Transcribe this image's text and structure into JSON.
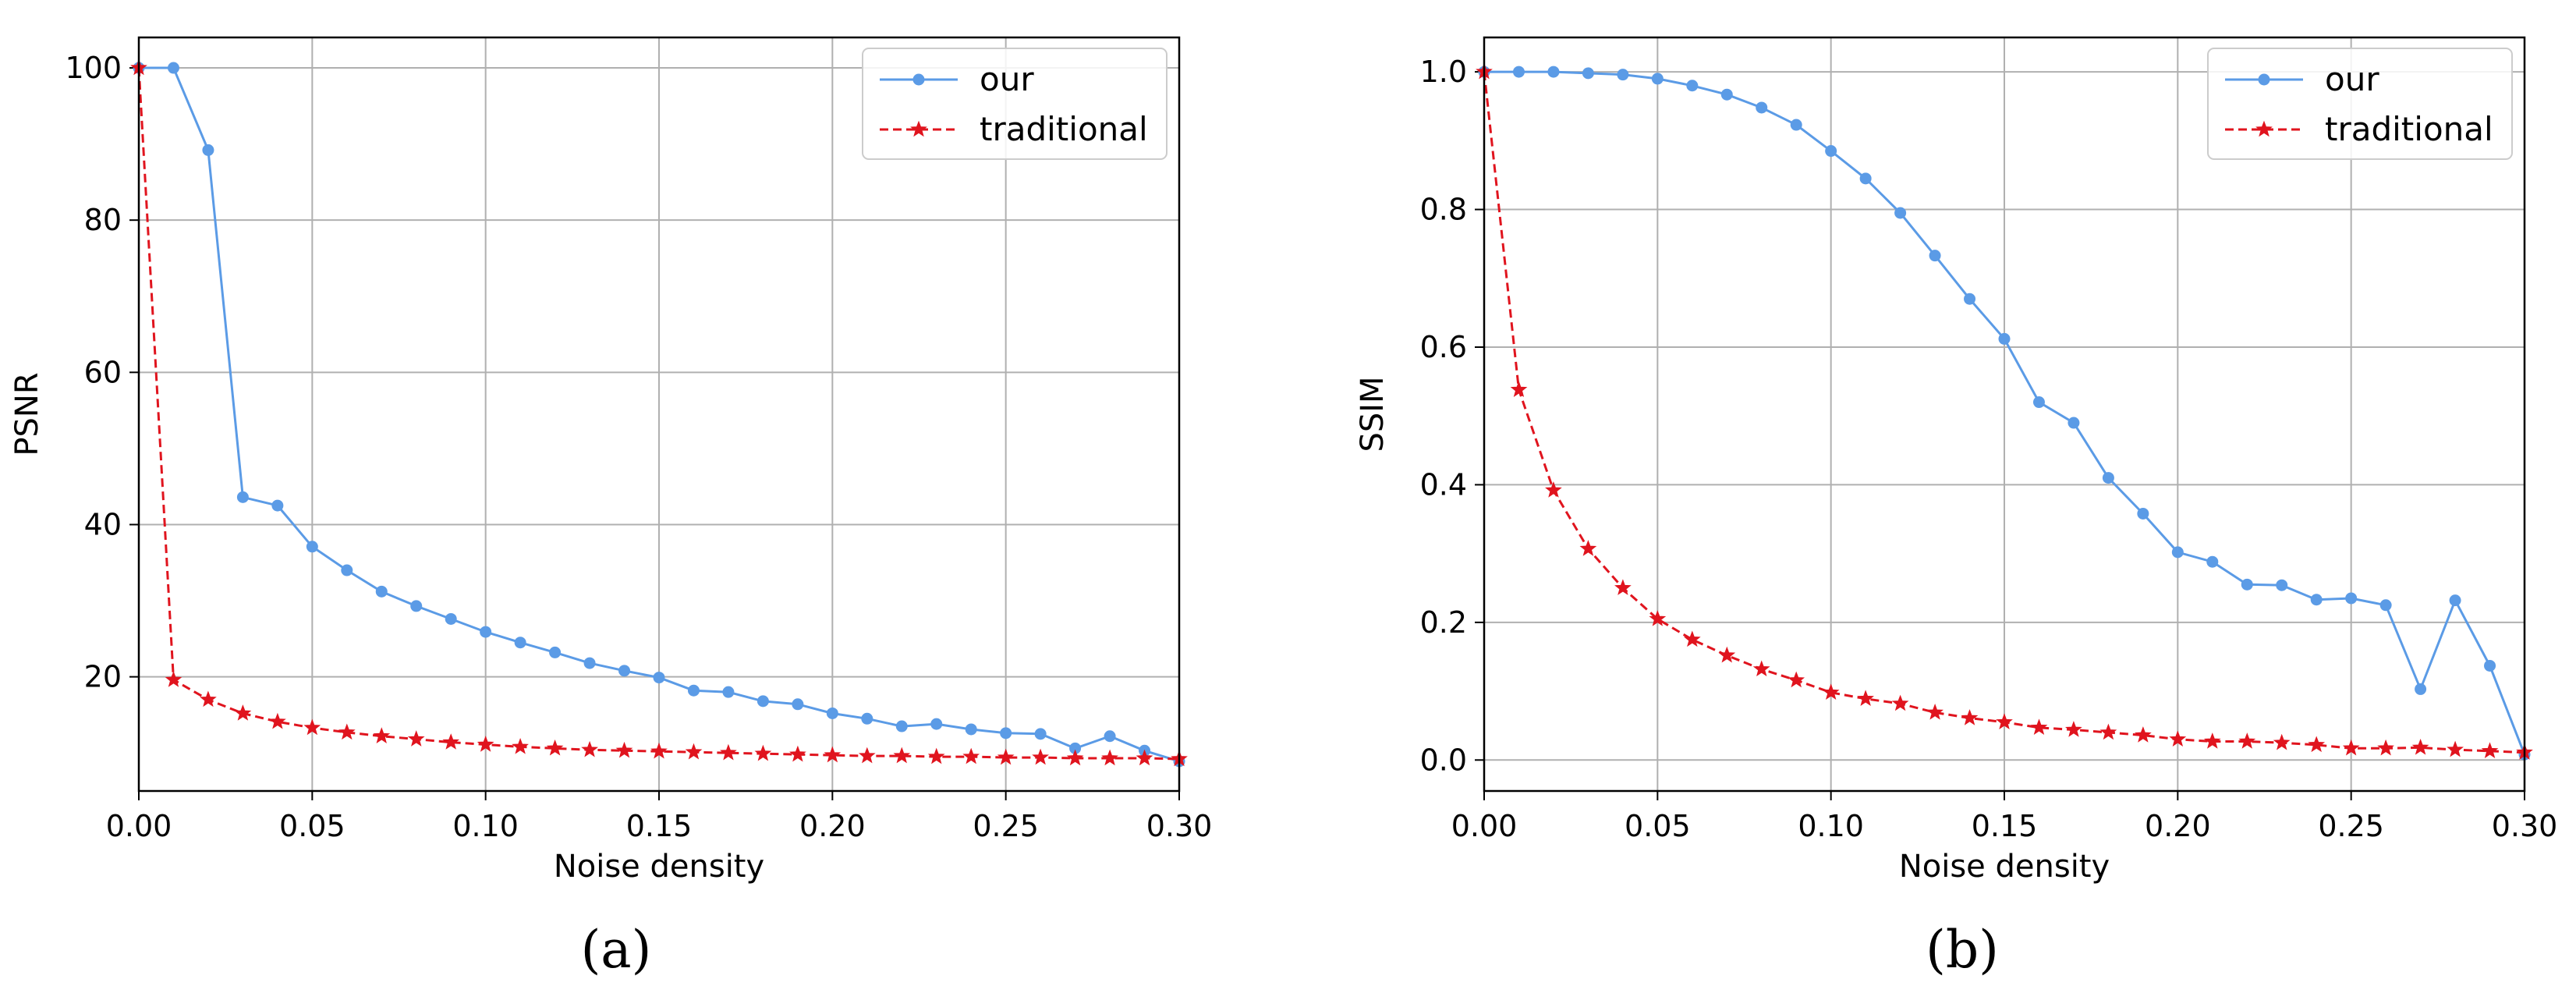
{
  "chart_data": [
    {
      "type": "line",
      "panel_label": "(a)",
      "xlabel": "Noise density",
      "ylabel": "PSNR",
      "xlim": [
        0,
        0.3
      ],
      "ylim": [
        5,
        104
      ],
      "xticks": [
        "0.00",
        "0.05",
        "0.10",
        "0.15",
        "0.20",
        "0.25",
        "0.30"
      ],
      "yticks": [
        "20",
        "40",
        "60",
        "80",
        "100"
      ],
      "grid": true,
      "legend": "top-right",
      "x": [
        0.0,
        0.01,
        0.02,
        0.03,
        0.04,
        0.05,
        0.06,
        0.07,
        0.08,
        0.09,
        0.1,
        0.11,
        0.12,
        0.13,
        0.14,
        0.15,
        0.16,
        0.17,
        0.18,
        0.19,
        0.2,
        0.21,
        0.22,
        0.23,
        0.24,
        0.25,
        0.26,
        0.27,
        0.28,
        0.29,
        0.3
      ],
      "series": [
        {
          "name": "our",
          "color": "#5b9be6",
          "marker": "circle",
          "linestyle": "solid",
          "values": [
            100,
            100,
            89.2,
            43.6,
            42.5,
            37.1,
            34.0,
            31.2,
            29.3,
            27.6,
            25.9,
            24.5,
            23.2,
            21.8,
            20.8,
            19.9,
            18.2,
            18.0,
            16.8,
            16.4,
            15.2,
            14.5,
            13.5,
            13.8,
            13.1,
            12.6,
            12.5,
            10.6,
            12.2,
            10.3,
            8.9
          ]
        },
        {
          "name": "traditional",
          "color": "#e0141e",
          "marker": "star",
          "linestyle": "dashed",
          "values": [
            100,
            19.6,
            17.0,
            15.2,
            14.1,
            13.3,
            12.7,
            12.2,
            11.8,
            11.4,
            11.1,
            10.8,
            10.6,
            10.4,
            10.3,
            10.2,
            10.1,
            10.0,
            9.9,
            9.8,
            9.7,
            9.6,
            9.6,
            9.5,
            9.5,
            9.4,
            9.4,
            9.3,
            9.3,
            9.3,
            9.2
          ]
        }
      ]
    },
    {
      "type": "line",
      "panel_label": "(b)",
      "xlabel": "Noise density",
      "ylabel": "SSIM",
      "xlim": [
        0,
        0.3
      ],
      "ylim": [
        -0.045,
        1.05
      ],
      "xticks": [
        "0.00",
        "0.05",
        "0.10",
        "0.15",
        "0.20",
        "0.25",
        "0.30"
      ],
      "yticks": [
        "0.0",
        "0.2",
        "0.4",
        "0.6",
        "0.8",
        "1.0"
      ],
      "grid": true,
      "legend": "top-right",
      "x": [
        0.0,
        0.01,
        0.02,
        0.03,
        0.04,
        0.05,
        0.06,
        0.07,
        0.08,
        0.09,
        0.1,
        0.11,
        0.12,
        0.13,
        0.14,
        0.15,
        0.16,
        0.17,
        0.18,
        0.19,
        0.2,
        0.21,
        0.22,
        0.23,
        0.24,
        0.25,
        0.26,
        0.27,
        0.28,
        0.29,
        0.3
      ],
      "series": [
        {
          "name": "our",
          "color": "#5b9be6",
          "marker": "circle",
          "linestyle": "solid",
          "values": [
            1.0,
            1.0,
            1.0,
            0.998,
            0.996,
            0.99,
            0.98,
            0.967,
            0.948,
            0.923,
            0.885,
            0.845,
            0.795,
            0.733,
            0.67,
            0.612,
            0.52,
            0.49,
            0.41,
            0.358,
            0.302,
            0.288,
            0.255,
            0.254,
            0.233,
            0.235,
            0.225,
            0.103,
            0.232,
            0.137,
            0.008
          ]
        },
        {
          "name": "traditional",
          "color": "#e0141e",
          "marker": "star",
          "linestyle": "dashed",
          "values": [
            1.0,
            0.538,
            0.392,
            0.307,
            0.25,
            0.205,
            0.175,
            0.152,
            0.132,
            0.116,
            0.098,
            0.089,
            0.082,
            0.069,
            0.061,
            0.055,
            0.047,
            0.044,
            0.04,
            0.036,
            0.03,
            0.027,
            0.027,
            0.025,
            0.022,
            0.017,
            0.017,
            0.018,
            0.015,
            0.013,
            0.011
          ]
        }
      ]
    }
  ]
}
